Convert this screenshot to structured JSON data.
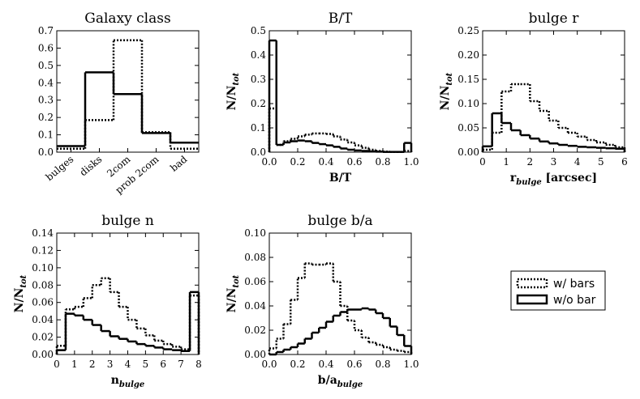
{
  "chart_data": [
    {
      "type": "step",
      "title": "Galaxy class",
      "categories": [
        "bulges",
        "disks",
        "2com",
        "prob 2com",
        "bad"
      ],
      "ylim": [
        0,
        0.7
      ],
      "yticks": [
        {
          "value": 0,
          "label": "0.0"
        },
        {
          "value": 0.1,
          "label": "0.1"
        },
        {
          "value": 0.2,
          "label": "0.2"
        },
        {
          "value": 0.3,
          "label": "0.3"
        },
        {
          "value": 0.4,
          "label": "0.4"
        },
        {
          "value": 0.5,
          "label": "0.5"
        },
        {
          "value": 0.6,
          "label": "0.6"
        },
        {
          "value": 0.7,
          "label": "0.7"
        }
      ],
      "series": [
        {
          "name": "w/ bars",
          "color": "#000000",
          "style": "dotted",
          "values": [
            0.02,
            0.185,
            0.645,
            0.115,
            0.02
          ]
        },
        {
          "name": "w/o bar",
          "color": "#000000",
          "style": "solid",
          "values": [
            0.035,
            0.46,
            0.335,
            0.11,
            0.055
          ]
        }
      ]
    },
    {
      "type": "histogram",
      "title": "B/T",
      "y_label": [
        {
          "t": "N/N"
        },
        {
          "t": "tot",
          "sub": true
        }
      ],
      "x_label": [
        {
          "t": "B/T"
        }
      ],
      "bins": [
        0,
        0.05,
        0.1,
        0.15,
        0.2,
        0.25,
        0.3,
        0.35,
        0.4,
        0.45,
        0.5,
        0.55,
        0.6,
        0.65,
        0.7,
        0.75,
        0.8,
        0.85,
        0.9,
        0.95,
        1.0
      ],
      "xlim": [
        0,
        1
      ],
      "xticks": [
        {
          "value": 0,
          "label": "0.0"
        },
        {
          "value": 0.2,
          "label": "0.2"
        },
        {
          "value": 0.4,
          "label": "0.4"
        },
        {
          "value": 0.6,
          "label": "0.6"
        },
        {
          "value": 0.8,
          "label": "0.8"
        },
        {
          "value": 1,
          "label": "1.0"
        }
      ],
      "ylim": [
        0,
        0.5
      ],
      "yticks": [
        {
          "value": 0,
          "label": "0.0"
        },
        {
          "value": 0.1,
          "label": "0.1"
        },
        {
          "value": 0.2,
          "label": "0.2"
        },
        {
          "value": 0.3,
          "label": "0.3"
        },
        {
          "value": 0.4,
          "label": "0.4"
        },
        {
          "value": 0.5,
          "label": "0.5"
        }
      ],
      "series": [
        {
          "name": "w/ bars",
          "color": "#000000",
          "style": "dotted",
          "values": [
            0.18,
            0.03,
            0.045,
            0.055,
            0.065,
            0.072,
            0.077,
            0.077,
            0.075,
            0.065,
            0.052,
            0.04,
            0.028,
            0.018,
            0.01,
            0.005,
            0.002,
            0.001,
            0.001,
            0.005
          ]
        },
        {
          "name": "w/o bar",
          "color": "#000000",
          "style": "solid",
          "values": [
            0.46,
            0.03,
            0.04,
            0.045,
            0.048,
            0.045,
            0.038,
            0.033,
            0.028,
            0.022,
            0.015,
            0.01,
            0.007,
            0.005,
            0.003,
            0.002,
            0.001,
            0.001,
            0.001,
            0.038
          ]
        }
      ]
    },
    {
      "type": "histogram",
      "title": "bulge r",
      "y_label": [
        {
          "t": "N/N"
        },
        {
          "t": "tot",
          "sub": true
        }
      ],
      "x_label": [
        {
          "t": "r"
        },
        {
          "t": "bulge",
          "sub": true
        },
        {
          "t": " [arcsec]"
        }
      ],
      "bins": [
        0,
        0.4,
        0.8,
        1.2,
        1.6,
        2.0,
        2.4,
        2.8,
        3.2,
        3.6,
        4.0,
        4.4,
        4.8,
        5.2,
        5.6,
        6.0
      ],
      "xlim": [
        0,
        6
      ],
      "xticks": [
        0,
        1,
        2,
        3,
        4,
        5,
        6
      ],
      "ylim": [
        0,
        0.25
      ],
      "yticks": [
        {
          "value": 0,
          "label": "0.00"
        },
        {
          "value": 0.05,
          "label": "0.05"
        },
        {
          "value": 0.1,
          "label": "0.10"
        },
        {
          "value": 0.15,
          "label": "0.15"
        },
        {
          "value": 0.2,
          "label": "0.20"
        },
        {
          "value": 0.25,
          "label": "0.25"
        }
      ],
      "series": [
        {
          "name": "w/ bars",
          "color": "#000000",
          "style": "dotted",
          "values": [
            0.005,
            0.04,
            0.125,
            0.14,
            0.14,
            0.105,
            0.085,
            0.065,
            0.05,
            0.04,
            0.032,
            0.025,
            0.02,
            0.015,
            0.01
          ]
        },
        {
          "name": "w/o bar",
          "color": "#000000",
          "style": "solid",
          "values": [
            0.012,
            0.08,
            0.06,
            0.045,
            0.035,
            0.028,
            0.022,
            0.018,
            0.015,
            0.013,
            0.011,
            0.01,
            0.009,
            0.008,
            0.007
          ]
        }
      ]
    },
    {
      "type": "histogram",
      "title": "bulge n",
      "y_label": [
        {
          "t": "N/N"
        },
        {
          "t": "tot",
          "sub": true
        }
      ],
      "x_label": [
        {
          "t": "n"
        },
        {
          "t": "bulge",
          "sub": true
        }
      ],
      "bins": [
        0,
        0.5,
        1,
        1.5,
        2,
        2.5,
        3,
        3.5,
        4,
        4.5,
        5,
        5.5,
        6,
        6.5,
        7,
        7.5,
        8
      ],
      "xlim": [
        0,
        8
      ],
      "xticks": [
        0,
        1,
        2,
        3,
        4,
        5,
        6,
        7,
        8
      ],
      "ylim": [
        0,
        0.14
      ],
      "yticks": [
        {
          "value": 0,
          "label": "0.00"
        },
        {
          "value": 0.02,
          "label": "0.02"
        },
        {
          "value": 0.04,
          "label": "0.04"
        },
        {
          "value": 0.06,
          "label": "0.06"
        },
        {
          "value": 0.08,
          "label": "0.08"
        },
        {
          "value": 0.1,
          "label": "0.10"
        },
        {
          "value": 0.12,
          "label": "0.12"
        },
        {
          "value": 0.14,
          "label": "0.14"
        }
      ],
      "series": [
        {
          "name": "w/ bars",
          "color": "#000000",
          "style": "dotted",
          "values": [
            0.01,
            0.052,
            0.055,
            0.065,
            0.08,
            0.088,
            0.072,
            0.055,
            0.04,
            0.03,
            0.022,
            0.016,
            0.012,
            0.009,
            0.006,
            0.068
          ]
        },
        {
          "name": "w/o bar",
          "color": "#000000",
          "style": "solid",
          "values": [
            0.005,
            0.047,
            0.045,
            0.04,
            0.034,
            0.027,
            0.021,
            0.018,
            0.015,
            0.012,
            0.01,
            0.008,
            0.006,
            0.005,
            0.004,
            0.072
          ]
        }
      ]
    },
    {
      "type": "histogram",
      "title": "bulge b/a",
      "y_label": [
        {
          "t": "N/N"
        },
        {
          "t": "tot",
          "sub": true
        }
      ],
      "x_label": [
        {
          "t": "b/a"
        },
        {
          "t": "bulge",
          "sub": true
        }
      ],
      "bins": [
        0,
        0.05,
        0.1,
        0.15,
        0.2,
        0.25,
        0.3,
        0.35,
        0.4,
        0.45,
        0.5,
        0.55,
        0.6,
        0.65,
        0.7,
        0.75,
        0.8,
        0.85,
        0.9,
        0.95,
        1.0
      ],
      "xlim": [
        0,
        1
      ],
      "xticks": [
        {
          "value": 0,
          "label": "0.0"
        },
        {
          "value": 0.2,
          "label": "0.2"
        },
        {
          "value": 0.4,
          "label": "0.4"
        },
        {
          "value": 0.6,
          "label": "0.6"
        },
        {
          "value": 0.8,
          "label": "0.8"
        },
        {
          "value": 1,
          "label": "1.0"
        }
      ],
      "ylim": [
        0,
        0.1
      ],
      "yticks": [
        {
          "value": 0,
          "label": "0.00"
        },
        {
          "value": 0.02,
          "label": "0.02"
        },
        {
          "value": 0.04,
          "label": "0.04"
        },
        {
          "value": 0.06,
          "label": "0.06"
        },
        {
          "value": 0.08,
          "label": "0.08"
        },
        {
          "value": 0.1,
          "label": "0.10"
        }
      ],
      "series": [
        {
          "name": "w/ bars",
          "color": "#000000",
          "style": "dotted",
          "values": [
            0.005,
            0.013,
            0.025,
            0.045,
            0.063,
            0.075,
            0.074,
            0.074,
            0.075,
            0.06,
            0.04,
            0.028,
            0.02,
            0.014,
            0.01,
            0.008,
            0.006,
            0.004,
            0.003,
            0.002
          ]
        },
        {
          "name": "w/o bar",
          "color": "#000000",
          "style": "solid",
          "values": [
            0,
            0.002,
            0.004,
            0.006,
            0.009,
            0.013,
            0.018,
            0.022,
            0.027,
            0.032,
            0.035,
            0.037,
            0.037,
            0.038,
            0.037,
            0.034,
            0.03,
            0.023,
            0.016,
            0.007
          ]
        }
      ]
    }
  ]
}
